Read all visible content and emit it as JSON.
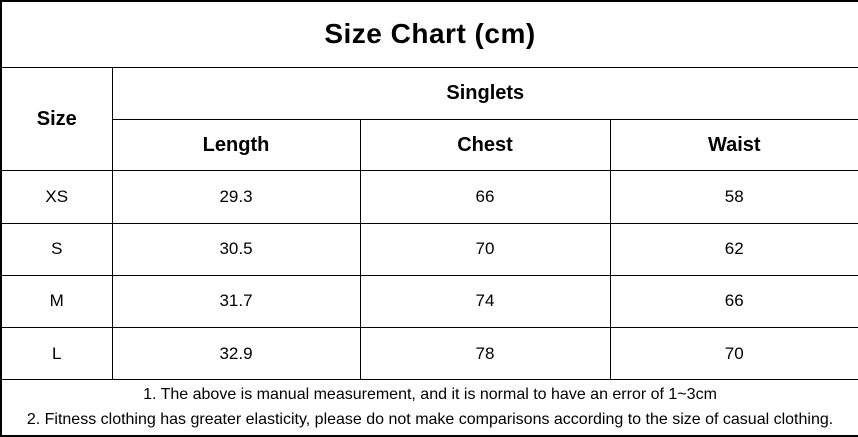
{
  "title": "Size Chart (cm)",
  "table": {
    "corner_header": "Size",
    "group_header": "Singlets",
    "sub_headers": [
      "Length",
      "Chest",
      "Waist"
    ],
    "rows": [
      {
        "size": "XS",
        "length": "29.3",
        "chest": "66",
        "waist": "58"
      },
      {
        "size": "S",
        "length": "30.5",
        "chest": "70",
        "waist": "62"
      },
      {
        "size": "M",
        "length": "31.7",
        "chest": "74",
        "waist": "66"
      },
      {
        "size": "L",
        "length": "32.9",
        "chest": "78",
        "waist": "70"
      }
    ]
  },
  "notes": {
    "line1": "1. The above is manual measurement, and it is normal to have an error of 1~3cm",
    "line2": "2. Fitness clothing has greater elasticity, please do not make comparisons according to the size of casual clothing."
  },
  "colors": {
    "background": "#ffffff",
    "border": "#000000",
    "text": "#000000"
  },
  "chart_data": {
    "type": "table",
    "title": "Size Chart (cm)",
    "unit": "cm",
    "group_header": "Singlets",
    "columns": [
      "Size",
      "Length",
      "Chest",
      "Waist"
    ],
    "rows": [
      [
        "XS",
        29.3,
        66,
        58
      ],
      [
        "S",
        30.5,
        70,
        62
      ],
      [
        "M",
        31.7,
        74,
        66
      ],
      [
        "L",
        32.9,
        78,
        70
      ]
    ],
    "notes": [
      "1. The above is manual measurement, and it is normal to have an error of 1~3cm",
      "2. Fitness clothing has greater elasticity, please do not make comparisons according to the size of casual clothing."
    ]
  }
}
